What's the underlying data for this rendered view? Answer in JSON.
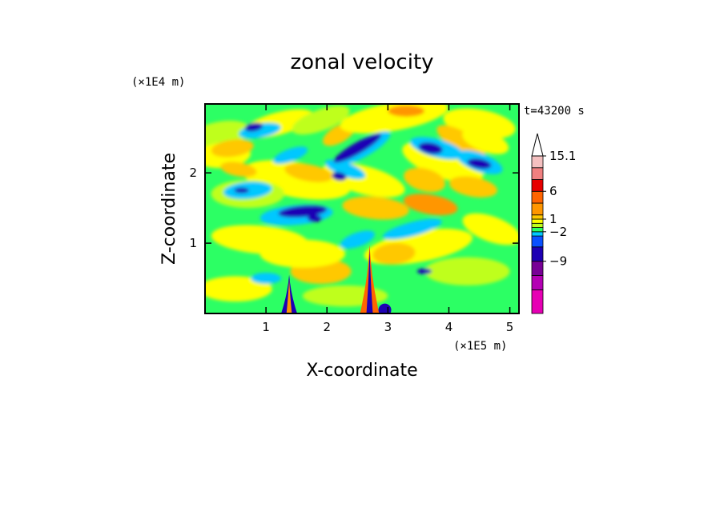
{
  "chart_data": {
    "type": "heatmap",
    "title": "zonal velocity",
    "xlabel": "X-coordinate",
    "ylabel": "Z-coordinate",
    "x_scale_label": "(×1E5 m)",
    "y_scale_label": "(×1E4 m)",
    "time_label": "t=43200 s",
    "xlim": [
      0,
      5.15
    ],
    "ylim": [
      0,
      2.98
    ],
    "x_ticks": [
      "1",
      "2",
      "3",
      "4",
      "5"
    ],
    "y_ticks": [
      "1",
      "2"
    ],
    "x_tick_values": [
      1,
      2,
      3,
      4,
      5
    ],
    "y_tick_values": [
      1,
      2
    ],
    "colorbar": {
      "levels": [
        -15,
        -12,
        -9,
        -6,
        -3,
        -2,
        -1,
        0,
        1,
        2,
        3,
        6,
        9,
        12,
        15.1
      ],
      "labeled_values": [
        "15.1",
        "6",
        "1",
        "−2",
        "−9"
      ],
      "labeled_numbers": [
        15.1,
        6,
        1,
        -2,
        -9
      ],
      "colors": [
        "#e600b4",
        "#b400b4",
        "#780096",
        "#1e00b4",
        "#0a50ff",
        "#00c8ff",
        "#2cff64",
        "#bfff1e",
        "#ffff00",
        "#ffc800",
        "#ff9600",
        "#ff6400",
        "#e60000",
        "#f08080",
        "#f4c0c0"
      ],
      "top_arrow_color": "#ffffff"
    }
  }
}
